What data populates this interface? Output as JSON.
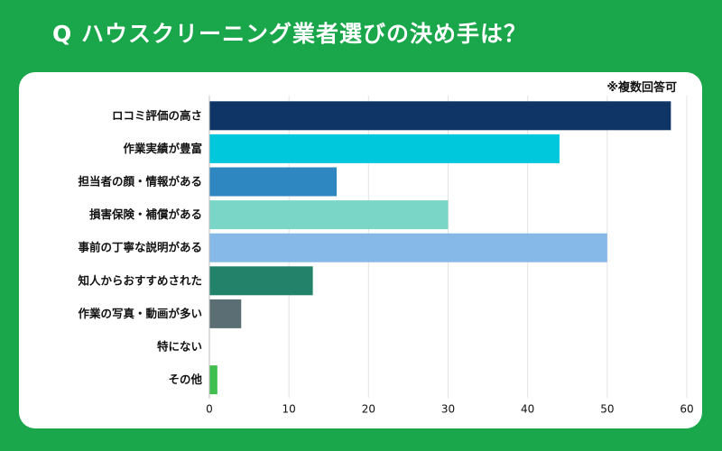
{
  "header": {
    "title": "Q ハウスクリーニング業者選びの決め手は？"
  },
  "note": "※複数回答可",
  "chart_data": {
    "type": "bar",
    "orientation": "horizontal",
    "categories": [
      "ロコミ評価の高さ",
      "作業実績が豊富",
      "担当者の顔・情報がある",
      "損害保険・補償がある",
      "事前の丁寧な説明がある",
      "知人からおすすめされた",
      "作業の写真・動画が多い",
      "特にない",
      "その他"
    ],
    "values": [
      58,
      44,
      16,
      30,
      50,
      13,
      4,
      0,
      1
    ],
    "colors": [
      "#0f3566",
      "#00c8dc",
      "#2f87c2",
      "#7ad6c6",
      "#86b9e8",
      "#23826a",
      "#5a6e73",
      "#cccccc",
      "#3fbf4e"
    ],
    "xlim": [
      0,
      60
    ],
    "xticks": [
      0,
      10,
      20,
      30,
      40,
      50,
      60
    ],
    "grid": true
  }
}
